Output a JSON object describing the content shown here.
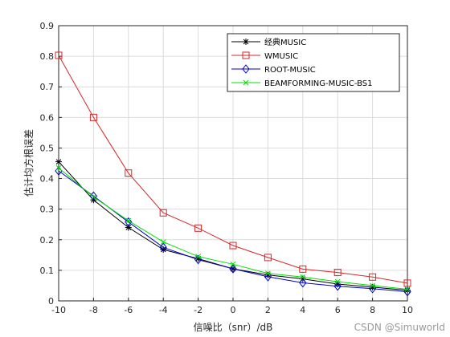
{
  "chart_data": {
    "type": "line",
    "xlabel": "信噪比（snr）/dB",
    "ylabel": "估计均方根误差",
    "xlim": [
      -10,
      10
    ],
    "ylim": [
      0,
      0.9
    ],
    "xticks": [
      "-10",
      "-8",
      "-6",
      "-4",
      "-2",
      "0",
      "2",
      "4",
      "6",
      "8",
      "10"
    ],
    "yticks": [
      "0",
      "0.1",
      "0.2",
      "0.3",
      "0.4",
      "0.5",
      "0.6",
      "0.7",
      "0.8",
      "0.9"
    ],
    "grid": true,
    "legend_position": "top-right",
    "x": [
      -10,
      -8,
      -6,
      -4,
      -2,
      0,
      2,
      4,
      6,
      8,
      10
    ],
    "series": [
      {
        "name": "经典MUSIC",
        "color": "#000000",
        "marker": "asterisk",
        "values": [
          0.455,
          0.33,
          0.24,
          0.168,
          0.138,
          0.105,
          0.085,
          0.072,
          0.055,
          0.045,
          0.035
        ]
      },
      {
        "name": "WMUSIC",
        "color": "#d62728",
        "marker": "square",
        "values": [
          0.803,
          0.6,
          0.418,
          0.288,
          0.238,
          0.181,
          0.142,
          0.104,
          0.093,
          0.078,
          0.058
        ]
      },
      {
        "name": "ROOT-MUSIC",
        "color": "#0000cc",
        "marker": "diamond",
        "values": [
          0.425,
          0.343,
          0.258,
          0.175,
          0.135,
          0.105,
          0.079,
          0.059,
          0.048,
          0.04,
          0.03
        ]
      },
      {
        "name": "BEAMFORMING-MUSIC-BS1",
        "color": "#00e000",
        "marker": "x",
        "values": [
          0.435,
          0.34,
          0.262,
          0.193,
          0.145,
          0.12,
          0.09,
          0.078,
          0.063,
          0.05,
          0.038
        ]
      }
    ]
  },
  "watermark": "CSDN @Simuworld"
}
